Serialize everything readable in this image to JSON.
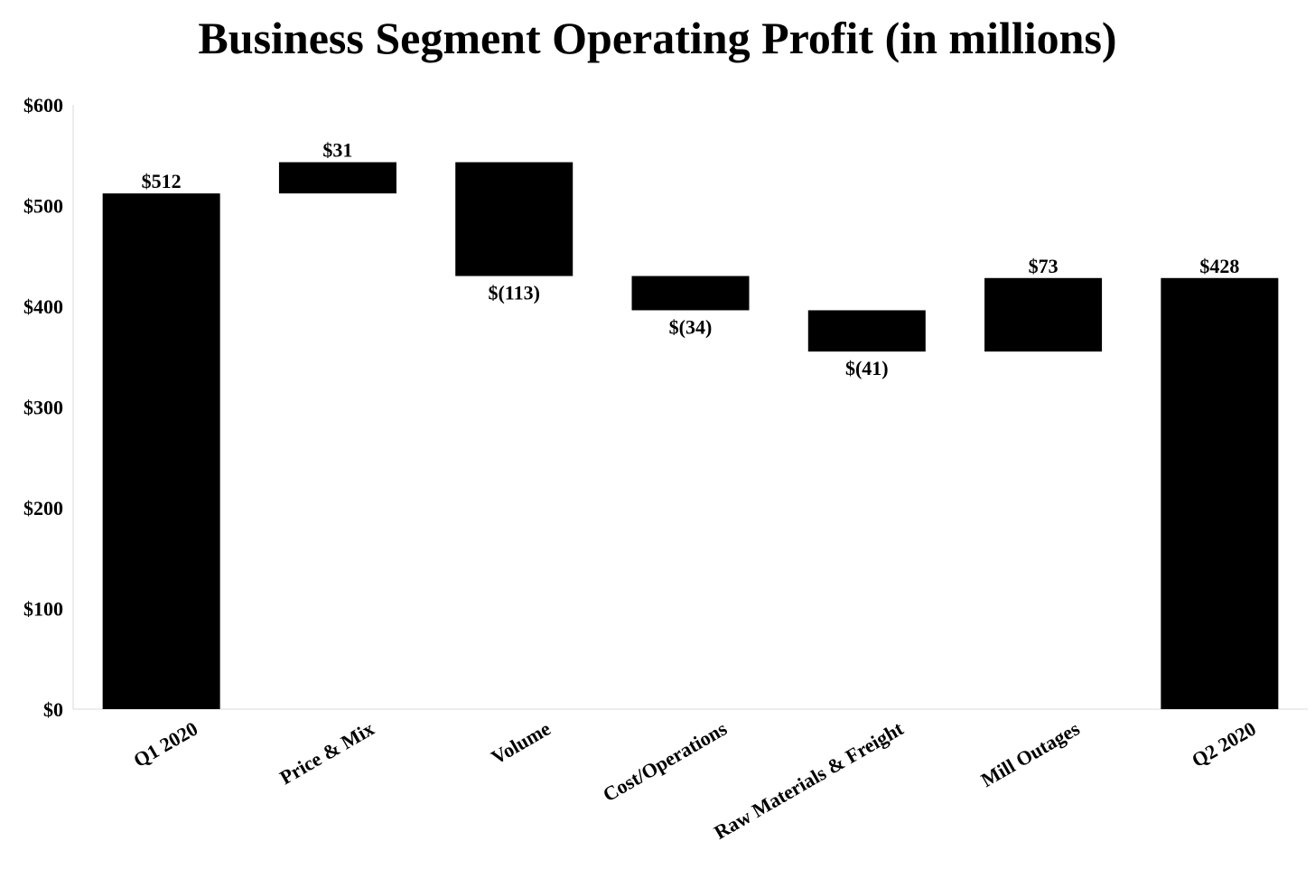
{
  "chart_data": {
    "type": "bar",
    "subtype": "waterfall",
    "title": "Business Segment Operating Profit (in millions)",
    "xlabel": "",
    "ylabel": "",
    "ylim": [
      0,
      600
    ],
    "yticks": [
      0,
      100,
      200,
      300,
      400,
      500,
      600
    ],
    "ytick_labels": [
      "$0",
      "$100",
      "$200",
      "$300",
      "$400",
      "$500",
      "$600"
    ],
    "grid": false,
    "legend": "none",
    "categories": [
      "Q1 2020",
      "Price & Mix",
      "Volume",
      "Cost/Operations",
      "Raw Materials & Freight",
      "Mill Outages",
      "Q2 2020"
    ],
    "kinds": [
      "total",
      "delta",
      "delta",
      "delta",
      "delta",
      "delta",
      "total"
    ],
    "values": [
      512,
      31,
      -113,
      -34,
      -41,
      73,
      428
    ],
    "data_labels": [
      "$512",
      "$31",
      "$(113)",
      "$(34)",
      "$(41)",
      "$73",
      "$428"
    ],
    "bar_color": "#000000",
    "axis_color": "#d9d9d9"
  }
}
